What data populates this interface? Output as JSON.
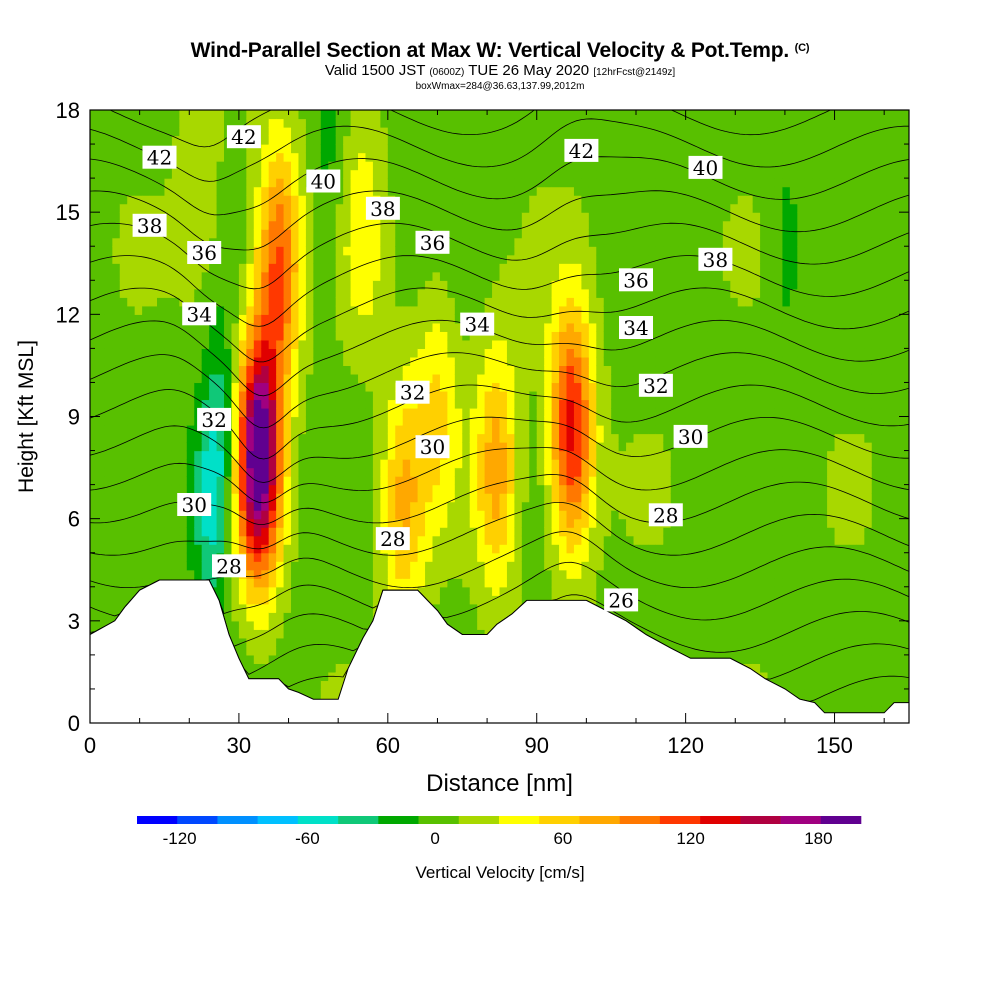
{
  "header": {
    "title": "Wind-Parallel Section at Max W: Vertical Velocity & Pot.Temp.",
    "copyright": "(C)",
    "subtitle_main": "Valid 1500 JST",
    "subtitle_utc": "(0600Z)",
    "subtitle_date": "TUE 26 May 2020",
    "subtitle_fcst": "[12hrFcst@2149z]",
    "boxline": "boxWmax=284@36.63,137.99,2012m"
  },
  "chart_data": {
    "type": "contour",
    "xlabel": "Distance [nm]",
    "ylabel": "Height [Kft MSL]",
    "xlim": [
      0,
      165
    ],
    "ylim": [
      0,
      18
    ],
    "x_ticks": [
      0,
      30,
      60,
      90,
      120,
      150
    ],
    "y_ticks": [
      0,
      3,
      6,
      9,
      12,
      15,
      18
    ],
    "fill_variable": "Vertical Velocity",
    "colorbar": {
      "label": "Vertical Velocity [cm/s]",
      "tick_labels": [
        "-120",
        "-60",
        "0",
        "60",
        "120",
        "180"
      ],
      "tick_values": [
        -120,
        -60,
        0,
        60,
        120,
        180
      ],
      "range": [
        -140,
        200
      ],
      "colors": [
        "#0000ff",
        "#0048ff",
        "#0090ff",
        "#00c0ff",
        "#00e0c8",
        "#10c878",
        "#00a800",
        "#58c000",
        "#a8d800",
        "#ffff00",
        "#ffd000",
        "#ffa800",
        "#ff7800",
        "#ff3800",
        "#e00000",
        "#b00040",
        "#a00080",
        "#600090"
      ]
    },
    "terrain_kft": [
      [
        0,
        2.6
      ],
      [
        5,
        3.0
      ],
      [
        7,
        3.4
      ],
      [
        10,
        3.9
      ],
      [
        14,
        4.2
      ],
      [
        24,
        4.2
      ],
      [
        26,
        3.6
      ],
      [
        28,
        2.6
      ],
      [
        30,
        1.9
      ],
      [
        32,
        1.3
      ],
      [
        38,
        1.3
      ],
      [
        40,
        1.0
      ],
      [
        42,
        0.9
      ],
      [
        45,
        0.7
      ],
      [
        50,
        0.7
      ],
      [
        52,
        1.6
      ],
      [
        55,
        2.5
      ],
      [
        57,
        3.0
      ],
      [
        59,
        3.9
      ],
      [
        66,
        3.9
      ],
      [
        68,
        3.6
      ],
      [
        70,
        3.3
      ],
      [
        72,
        2.9
      ],
      [
        75,
        2.6
      ],
      [
        80,
        2.6
      ],
      [
        82,
        2.9
      ],
      [
        85,
        3.2
      ],
      [
        88,
        3.6
      ],
      [
        100,
        3.6
      ],
      [
        108,
        3.0
      ],
      [
        112,
        2.6
      ],
      [
        117,
        2.2
      ],
      [
        121,
        1.9
      ],
      [
        129,
        1.9
      ],
      [
        133,
        1.6
      ],
      [
        136,
        1.3
      ],
      [
        140,
        1.0
      ],
      [
        143,
        0.7
      ],
      [
        146,
        0.6
      ],
      [
        148,
        0.3
      ],
      [
        160,
        0.3
      ],
      [
        162,
        0.6
      ],
      [
        165,
        0.6
      ]
    ],
    "updraft_cores": [
      {
        "x": 34,
        "y": 7.8,
        "w_max": 200
      },
      {
        "x": 97,
        "y": 8.6,
        "w_max": 130
      },
      {
        "x": 82,
        "y": 7.5,
        "w_max": 75
      },
      {
        "x": 63,
        "y": 6.5,
        "w_max": 65
      },
      {
        "x": 38,
        "y": 13.5,
        "w_max": 105
      },
      {
        "x": 70,
        "y": 9.5,
        "w_max": 45
      },
      {
        "x": 22,
        "y": 16.0,
        "w_max": 25
      },
      {
        "x": 55,
        "y": 14.5,
        "w_max": 35
      }
    ],
    "downdraft_cores": [
      {
        "x": 24,
        "y": 6.5,
        "w_min": -55
      },
      {
        "x": 27,
        "y": 8.5,
        "w_min": -40
      },
      {
        "x": 48,
        "y": 16.0,
        "w_min": -20
      },
      {
        "x": 140,
        "y": 14.0,
        "w_min": -20
      }
    ],
    "theta_contour_labels": [
      {
        "text": "42",
        "x": 14,
        "y": 16.6
      },
      {
        "text": "42",
        "x": 31,
        "y": 17.2
      },
      {
        "text": "42",
        "x": 99,
        "y": 16.8
      },
      {
        "text": "40",
        "x": 47,
        "y": 15.9
      },
      {
        "text": "40",
        "x": 124,
        "y": 16.3
      },
      {
        "text": "38",
        "x": 12,
        "y": 14.6
      },
      {
        "text": "38",
        "x": 59,
        "y": 15.1
      },
      {
        "text": "38",
        "x": 126,
        "y": 13.6
      },
      {
        "text": "36",
        "x": 23,
        "y": 13.8
      },
      {
        "text": "36",
        "x": 69,
        "y": 14.1
      },
      {
        "text": "36",
        "x": 110,
        "y": 13.0
      },
      {
        "text": "34",
        "x": 22,
        "y": 12.0
      },
      {
        "text": "34",
        "x": 78,
        "y": 11.7
      },
      {
        "text": "34",
        "x": 110,
        "y": 11.6
      },
      {
        "text": "32",
        "x": 25,
        "y": 8.9
      },
      {
        "text": "32",
        "x": 65,
        "y": 9.7
      },
      {
        "text": "32",
        "x": 114,
        "y": 9.9
      },
      {
        "text": "30",
        "x": 21,
        "y": 6.4
      },
      {
        "text": "30",
        "x": 69,
        "y": 8.1
      },
      {
        "text": "30",
        "x": 121,
        "y": 8.4
      },
      {
        "text": "28",
        "x": 28,
        "y": 4.6
      },
      {
        "text": "28",
        "x": 61,
        "y": 5.4
      },
      {
        "text": "28",
        "x": 116,
        "y": 6.1
      },
      {
        "text": "26",
        "x": 107,
        "y": 3.6
      }
    ],
    "theta_contour_levels_k": [
      25,
      26,
      27,
      28,
      29,
      30,
      31,
      32,
      33,
      34,
      35,
      36,
      37,
      38,
      39,
      40,
      41,
      42,
      43
    ]
  }
}
